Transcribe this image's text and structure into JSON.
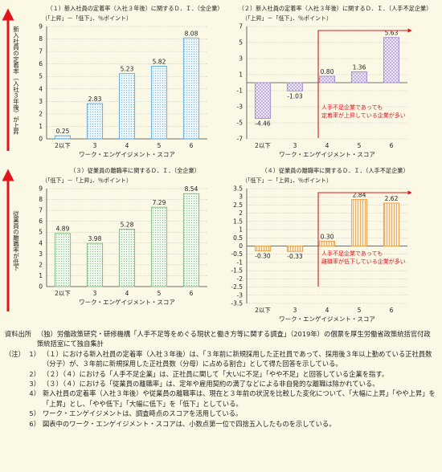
{
  "side_labels": {
    "upper": "新入社員の定着率（入社３年後）が上昇",
    "lower": "従業員の離職率が低下"
  },
  "chart_data": [
    {
      "type": "bar",
      "title": "（１）新入社員の定着率（入社３年後）に関するＤ．Ｉ．（全企業）",
      "subtitle": "（「上昇」－「低下」、％ポイント）",
      "xlabel": "ワーク・エンゲイジメント・スコア",
      "categories": [
        "2以下",
        "3",
        "4",
        "5",
        "6"
      ],
      "values": [
        0.25,
        2.83,
        5.23,
        5.82,
        8.08
      ],
      "value_labels": [
        "0.25",
        "2.83",
        "5.23",
        "5.82",
        "8.08"
      ],
      "yticks": [
        "0",
        "1",
        "2",
        "3",
        "4",
        "5",
        "6",
        "7",
        "8",
        "9"
      ],
      "ylim": [
        0,
        9
      ],
      "bar_color": "#5fa8d6",
      "annotation": ""
    },
    {
      "type": "bar",
      "title": "（２）新入社員の定着率（入社３年後）に関するＤ．Ｉ．（人手不足企業）",
      "subtitle": "（「上昇」－「低下」、％ポイント）",
      "xlabel": "ワーク・エンゲイジメント・スコア",
      "categories": [
        "2以下",
        "3",
        "4",
        "5",
        "6"
      ],
      "values": [
        -4.46,
        -1.03,
        0.8,
        1.36,
        5.63
      ],
      "value_labels": [
        "-4.46",
        "-1.03",
        "0.80",
        "1.36",
        "5.63"
      ],
      "yticks": [
        "-7",
        "-5",
        "-3",
        "-1",
        "1",
        "3",
        "5",
        "7"
      ],
      "ylim": [
        -7,
        7
      ],
      "bar_color": "#a48ad0",
      "annotation": "人手不足企業であっても\n定着率が上昇している企業が多い"
    },
    {
      "type": "bar",
      "title": "（３）従業員の離職率に関するＤ．Ｉ．（全企業）",
      "subtitle": "（「低下」－「上昇」、％ポイント）",
      "xlabel": "ワーク・エンゲイジメント・スコア",
      "categories": [
        "2以下",
        "3",
        "4",
        "5",
        "6"
      ],
      "values": [
        4.89,
        3.98,
        5.28,
        7.29,
        8.54
      ],
      "value_labels": [
        "4.89",
        "3.98",
        "5.28",
        "7.29",
        "8.54"
      ],
      "yticks": [
        "0",
        "1",
        "2",
        "3",
        "4",
        "5",
        "6",
        "7",
        "8",
        "9"
      ],
      "ylim": [
        0,
        9
      ],
      "bar_color": "#7cb77c",
      "annotation": ""
    },
    {
      "type": "bar",
      "title": "（４）従業員の離職率に関するＤ．Ｉ．（人手不足企業）",
      "subtitle": "（「低下」－「上昇」、％ポイント）",
      "xlabel": "ワーク・エンゲイジメント・スコア",
      "categories": [
        "2以下",
        "3",
        "4",
        "5",
        "6"
      ],
      "values": [
        -0.3,
        -0.33,
        0.3,
        2.84,
        2.62
      ],
      "value_labels": [
        "-0.30",
        "-0.33",
        "0.30",
        "2.84",
        "2.62"
      ],
      "yticks": [
        "-3.5",
        "-3",
        "-2.5",
        "-2",
        "-1.5",
        "-1",
        "-0.5",
        "0",
        "0.5",
        "1",
        "1.5",
        "2",
        "2.5",
        "3",
        "3.5"
      ],
      "ylim": [
        -3.5,
        3.5
      ],
      "bar_color": "#e8a04a",
      "annotation": "人手不足企業であっても\n離職率が低下している企業が多い"
    }
  ],
  "notes": {
    "source_head": "資料出所",
    "source_text": "（独）労働政策研究・研修機構「人手不足等をめぐる現状と働き方等に関する調査」（2019年）の個票を厚生労働省政策統括官付政策統括室にて独自集計",
    "note_head": "（注）",
    "items": [
      {
        "num": "1）",
        "text": "（１）における新入社員の定着率（入社３年後）は、「３年前に新規採用した正社員であって、採用後３年以上勤めている正社員数（分子）が、３年前に新規採用した正社員数（分母）に占める割合」として得た回答を示している。"
      },
      {
        "num": "2）",
        "text": "（２）（４）における「人手不足企業」は、正社員に関して「大いに不足」「やや不足」と回答している企業を指す。"
      },
      {
        "num": "3）",
        "text": "（３）（４）における「従業員の離職率」は、定年や雇用契約の満了などによる非自発的な離職は除かれている。"
      },
      {
        "num": "4）",
        "text": "新入社員の定着率（入社３年後）や従業員の離職率は、現在と３年前の状況を比較した変化について、「大幅に上昇」「やや上昇」を「上昇」とし、「やや低下」「大幅に低下」を「低下」としている。"
      },
      {
        "num": "5）",
        "text": "ワーク・エンゲイジメントは、調査時点のスコアを活用している。"
      },
      {
        "num": "6）",
        "text": "図表中のワーク・エンゲイジメント・スコアは、小数点第一位で四捨五入したものを示している。"
      }
    ]
  }
}
